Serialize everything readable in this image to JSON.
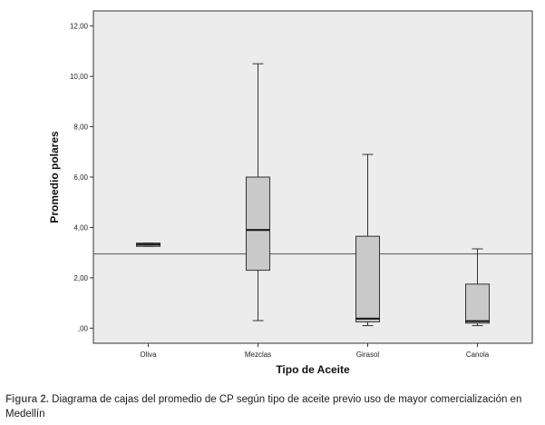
{
  "chart_data": {
    "type": "boxplot",
    "xlabel": "Tipo de Aceite",
    "ylabel": "Promedio polares",
    "ylim": [
      -0.6,
      12.6
    ],
    "yticks": [
      0,
      2,
      4,
      6,
      8,
      10,
      12
    ],
    "ytick_labels": [
      ",00",
      "2,00",
      "4,00",
      "6,00",
      "8,00",
      "10,00",
      "12,00"
    ],
    "reference_line": 2.95,
    "grid": false,
    "categories": [
      "Oliva",
      "Mezclas",
      "Girasol",
      "Canola"
    ],
    "boxes": [
      {
        "category": "Oliva",
        "min": 3.25,
        "q1": 3.25,
        "median": 3.32,
        "q3": 3.38,
        "max": 3.38
      },
      {
        "category": "Mezclas",
        "min": 0.3,
        "q1": 2.3,
        "median": 3.9,
        "q3": 6.0,
        "max": 10.5
      },
      {
        "category": "Girasol",
        "min": 0.1,
        "q1": 0.25,
        "median": 0.38,
        "q3": 3.65,
        "max": 6.9
      },
      {
        "category": "Canola",
        "min": 0.1,
        "q1": 0.2,
        "median": 0.28,
        "q3": 1.75,
        "max": 3.15
      }
    ],
    "colors": {
      "plot_bg": "#ececec",
      "box_fill": "#c9c9c9",
      "line": "#333333"
    }
  },
  "caption": {
    "label": "Figura 2.",
    "text": " Diagrama de cajas del promedio de CP según tipo de aceite previo uso de mayor comercialización en Medellín"
  }
}
